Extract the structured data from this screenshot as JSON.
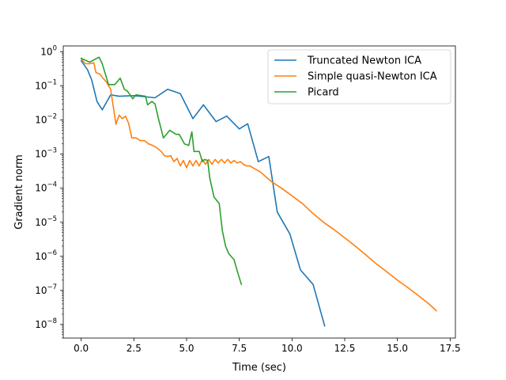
{
  "chart_data": {
    "type": "line",
    "xlabel": "Time (sec)",
    "ylabel": "Gradient norm",
    "xlim": [
      -0.85,
      17.75
    ],
    "ylim": [
      4e-09,
      1.5
    ],
    "yscale": "log",
    "x_ticks": [
      0.0,
      2.5,
      5.0,
      7.5,
      10.0,
      12.5,
      15.0,
      17.5
    ],
    "x_tick_labels": [
      "0.0",
      "2.5",
      "5.0",
      "7.5",
      "10.0",
      "12.5",
      "15.0",
      "17.5"
    ],
    "y_ticks": [
      1e-08,
      1e-07,
      1e-06,
      1e-05,
      0.0001,
      0.001,
      0.01,
      0.1,
      1
    ],
    "y_tick_labels": [
      {
        "base": "10",
        "exp": "−8"
      },
      {
        "base": "10",
        "exp": "−7"
      },
      {
        "base": "10",
        "exp": "−6"
      },
      {
        "base": "10",
        "exp": "−5"
      },
      {
        "base": "10",
        "exp": "−4"
      },
      {
        "base": "10",
        "exp": "−3"
      },
      {
        "base": "10",
        "exp": "−2"
      },
      {
        "base": "10",
        "exp": "−1"
      },
      {
        "base": "10",
        "exp": "0"
      }
    ],
    "grid": false,
    "legend_position": "top-right",
    "series": [
      {
        "name": "Truncated Newton ICA",
        "color": "#1f77b4",
        "x": [
          0.0,
          0.3,
          0.5,
          0.75,
          1.0,
          1.4,
          1.8,
          2.5,
          3.5,
          4.1,
          4.7,
          5.3,
          5.8,
          6.4,
          6.9,
          7.5,
          7.9,
          8.4,
          8.9,
          9.3,
          9.9,
          10.4,
          11.0,
          11.55
        ],
        "y": [
          0.55,
          0.3,
          0.15,
          0.035,
          0.02,
          0.055,
          0.05,
          0.052,
          0.045,
          0.08,
          0.06,
          0.011,
          0.028,
          0.009,
          0.013,
          0.0055,
          0.0078,
          0.0006,
          0.00085,
          2e-05,
          4.5e-06,
          4e-07,
          1.5e-07,
          9e-09
        ]
      },
      {
        "name": "Simple quasi-Newton ICA",
        "color": "#ff7f0e",
        "x": [
          0.0,
          0.2,
          0.4,
          0.6,
          0.7,
          0.9,
          1.0,
          1.2,
          1.4,
          1.5,
          1.65,
          1.8,
          1.95,
          2.1,
          2.25,
          2.4,
          2.6,
          2.8,
          3.0,
          3.2,
          3.4,
          3.6,
          3.8,
          3.95,
          4.1,
          4.25,
          4.4,
          4.55,
          4.7,
          4.85,
          5.0,
          5.15,
          5.3,
          5.45,
          5.6,
          5.75,
          5.9,
          6.05,
          6.2,
          6.35,
          6.5,
          6.65,
          6.8,
          6.95,
          7.1,
          7.25,
          7.4,
          7.55,
          7.7,
          7.85,
          8.0,
          8.5,
          9.0,
          9.5,
          10.0,
          10.5,
          11.0,
          11.5,
          12.0,
          12.5,
          13.0,
          13.5,
          14.0,
          14.5,
          15.0,
          15.5,
          16.0,
          16.5,
          16.85
        ],
        "y": [
          0.62,
          0.45,
          0.45,
          0.48,
          0.25,
          0.22,
          0.18,
          0.13,
          0.08,
          0.03,
          0.0075,
          0.014,
          0.011,
          0.013,
          0.008,
          0.003,
          0.003,
          0.0025,
          0.0025,
          0.002,
          0.0018,
          0.0015,
          0.0012,
          0.0009,
          0.00085,
          0.0009,
          0.0006,
          0.00075,
          0.00045,
          0.00065,
          0.0004,
          0.00065,
          0.00045,
          0.00065,
          0.00045,
          0.0007,
          0.0005,
          0.0007,
          0.0005,
          0.0007,
          0.00055,
          0.0007,
          0.00055,
          0.0007,
          0.00055,
          0.00065,
          0.00055,
          0.0006,
          0.0005,
          0.00045,
          0.00045,
          0.0003,
          0.00016,
          0.0001,
          6e-05,
          3.5e-05,
          1.8e-05,
          1e-05,
          6e-06,
          3.5e-06,
          2e-06,
          1.1e-06,
          6e-07,
          3.5e-07,
          2e-07,
          1.2e-07,
          7e-08,
          4e-08,
          2.5e-08
        ]
      },
      {
        "name": "Picard",
        "color": "#2ca02c",
        "x": [
          0.0,
          0.4,
          0.85,
          1.0,
          1.3,
          1.6,
          1.85,
          2.05,
          2.2,
          2.45,
          2.6,
          2.85,
          3.05,
          3.15,
          3.35,
          3.5,
          3.65,
          3.9,
          4.2,
          4.5,
          4.65,
          4.9,
          5.1,
          5.25,
          5.35,
          5.6,
          5.75,
          5.85,
          6.0,
          6.1,
          6.3,
          6.55,
          6.7,
          6.85,
          7.0,
          7.25,
          7.45,
          7.6
        ],
        "y": [
          0.65,
          0.5,
          0.7,
          0.45,
          0.11,
          0.11,
          0.17,
          0.08,
          0.07,
          0.042,
          0.055,
          0.052,
          0.05,
          0.028,
          0.035,
          0.03,
          0.012,
          0.003,
          0.005,
          0.0038,
          0.0038,
          0.002,
          0.0018,
          0.0045,
          0.0012,
          0.0012,
          0.0006,
          0.0007,
          0.00065,
          0.0002,
          5.5e-05,
          3.5e-05,
          5.5e-06,
          2e-06,
          1.2e-06,
          8e-07,
          3e-07,
          1.5e-07
        ]
      }
    ]
  }
}
